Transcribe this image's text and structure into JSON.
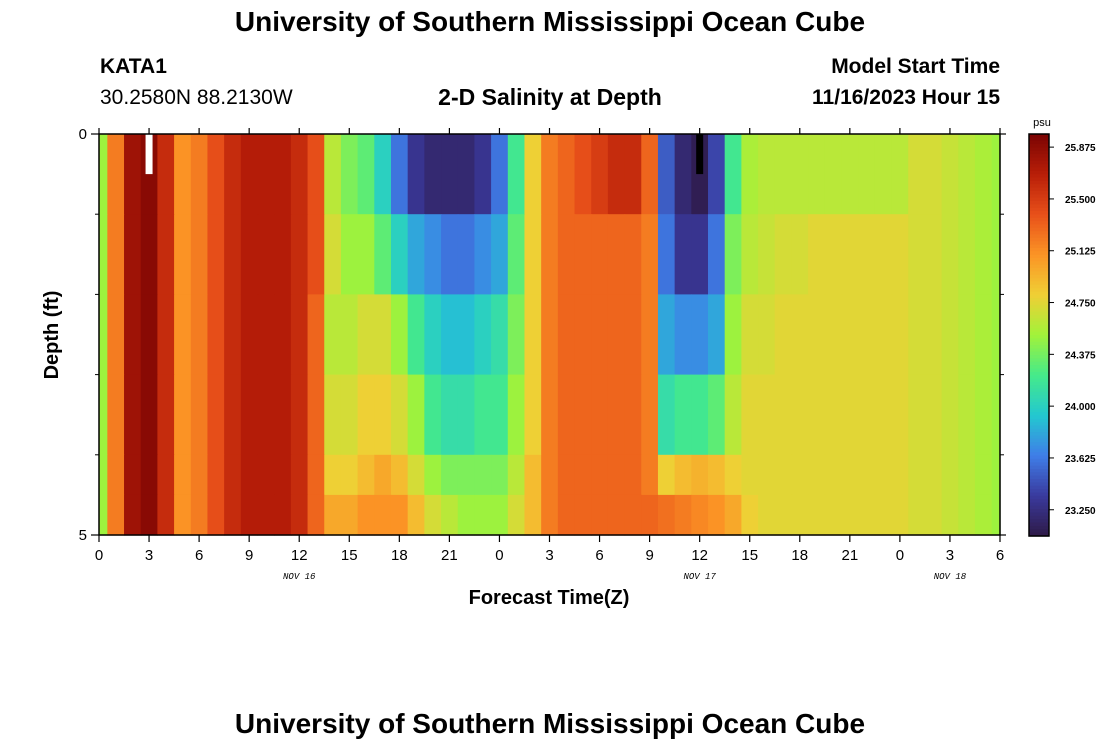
{
  "header": {
    "title": "University of Southern Mississippi Ocean Cube",
    "station_id": "KATA1",
    "coordinates": "30.2580N  88.2130W",
    "plot_title": "2-D Salinity at Depth",
    "start_label": "Model Start Time",
    "start_value": "11/16/2023 Hour 15"
  },
  "footer": {
    "title": "University of Southern Mississippi Ocean Cube"
  },
  "colors": {
    "palette": [
      "#2e1a47",
      "#3a3a9e",
      "#3f7ee8",
      "#23c8d0",
      "#45ea8a",
      "#a2f23a",
      "#f0cf35",
      "#fb9425",
      "#e8501a",
      "#b81e08",
      "#7a0403"
    ],
    "marker_white": "#ffffff",
    "marker_black": "#000000"
  },
  "chart_data": {
    "type": "heatmap",
    "title": "2-D Salinity at Depth",
    "xlabel": "Forecast Time(Z)",
    "ylabel": "Depth (ft)",
    "units": "psu",
    "x_range_hours": [
      0,
      54
    ],
    "y_range": [
      0,
      5
    ],
    "y_tick_labels": [
      "0",
      "5"
    ],
    "y_minor_ticks": [
      1,
      2,
      3,
      4
    ],
    "x_ticks": [
      {
        "hour": 0,
        "label": "0"
      },
      {
        "hour": 3,
        "label": "3"
      },
      {
        "hour": 6,
        "label": "6"
      },
      {
        "hour": 9,
        "label": "9"
      },
      {
        "hour": 12,
        "label": "12"
      },
      {
        "hour": 15,
        "label": "15"
      },
      {
        "hour": 18,
        "label": "18"
      },
      {
        "hour": 21,
        "label": "21"
      },
      {
        "hour": 24,
        "label": "0"
      },
      {
        "hour": 27,
        "label": "3"
      },
      {
        "hour": 30,
        "label": "6"
      },
      {
        "hour": 33,
        "label": "9"
      },
      {
        "hour": 36,
        "label": "12"
      },
      {
        "hour": 39,
        "label": "15"
      },
      {
        "hour": 42,
        "label": "18"
      },
      {
        "hour": 45,
        "label": "21"
      },
      {
        "hour": 48,
        "label": "0"
      },
      {
        "hour": 51,
        "label": "3"
      },
      {
        "hour": 54,
        "label": "6"
      }
    ],
    "date_labels": [
      {
        "hour": 12,
        "label": "NOV 16"
      },
      {
        "hour": 36,
        "label": "NOV 17"
      },
      {
        "hour": 51,
        "label": "NOV 18"
      }
    ],
    "colorbar": {
      "label": "psu",
      "min": 23.06,
      "max": 25.97,
      "ticks": [
        "25.875",
        "25.500",
        "25.125",
        "24.750",
        "24.375",
        "24.000",
        "23.625",
        "23.250"
      ]
    },
    "depth_levels": [
      0,
      1,
      2,
      3,
      4,
      5
    ],
    "time_hours": [
      0,
      1,
      2,
      3,
      4,
      5,
      6,
      7,
      8,
      9,
      10,
      11,
      12,
      13,
      14,
      15,
      16,
      17,
      18,
      19,
      20,
      21,
      22,
      23,
      24,
      25,
      26,
      27,
      28,
      29,
      30,
      31,
      32,
      33,
      34,
      35,
      36,
      37,
      38,
      39,
      40,
      41,
      42,
      43,
      44,
      45,
      46,
      47,
      48,
      49,
      50,
      51,
      52,
      53,
      54
    ],
    "salinity_profiles": {
      "0": [
        24.5,
        25.2,
        25.8,
        25.9,
        25.6,
        25.1,
        25.2,
        25.4,
        25.6,
        25.7,
        25.7,
        25.7,
        25.6,
        25.4,
        24.6,
        24.4,
        24.3,
        24.0,
        23.6,
        23.3,
        23.2,
        23.2,
        23.2,
        23.3,
        23.6,
        24.2,
        24.8,
        25.2,
        25.3,
        25.4,
        25.5,
        25.6,
        25.6,
        25.3,
        23.5,
        23.2,
        23.1,
        23.4,
        24.2,
        24.55,
        24.6,
        24.6,
        24.6,
        24.6,
        24.6,
        24.6,
        24.6,
        24.6,
        24.6,
        24.7,
        24.7,
        24.65,
        24.6,
        24.55,
        24.5
      ],
      "1": [
        24.5,
        25.2,
        25.8,
        25.9,
        25.6,
        25.1,
        25.2,
        25.4,
        25.6,
        25.7,
        25.7,
        25.7,
        25.6,
        25.4,
        24.7,
        24.5,
        24.5,
        24.3,
        24.0,
        23.8,
        23.7,
        23.6,
        23.6,
        23.7,
        23.8,
        24.3,
        24.8,
        25.2,
        25.3,
        25.3,
        25.3,
        25.3,
        25.3,
        25.2,
        23.6,
        23.3,
        23.3,
        23.6,
        24.4,
        24.6,
        24.65,
        24.7,
        24.7,
        24.75,
        24.75,
        24.75,
        24.75,
        24.75,
        24.75,
        24.7,
        24.7,
        24.65,
        24.6,
        24.55,
        24.5
      ],
      "2": [
        24.5,
        25.2,
        25.8,
        25.9,
        25.6,
        25.1,
        25.2,
        25.4,
        25.6,
        25.7,
        25.7,
        25.7,
        25.6,
        25.3,
        24.6,
        24.6,
        24.7,
        24.7,
        24.5,
        24.2,
        24.0,
        23.9,
        23.9,
        24.0,
        24.1,
        24.4,
        24.8,
        25.2,
        25.3,
        25.3,
        25.3,
        25.3,
        25.3,
        25.2,
        23.8,
        23.7,
        23.7,
        23.8,
        24.5,
        24.7,
        24.7,
        24.75,
        24.75,
        24.75,
        24.75,
        24.75,
        24.75,
        24.75,
        24.75,
        24.7,
        24.7,
        24.65,
        24.6,
        24.55,
        24.5
      ],
      "3": [
        24.5,
        25.2,
        25.8,
        25.9,
        25.6,
        25.1,
        25.2,
        25.4,
        25.6,
        25.7,
        25.7,
        25.7,
        25.6,
        25.3,
        24.7,
        24.7,
        24.8,
        24.8,
        24.7,
        24.5,
        24.2,
        24.1,
        24.1,
        24.2,
        24.2,
        24.5,
        24.8,
        25.2,
        25.3,
        25.3,
        25.3,
        25.3,
        25.3,
        25.2,
        24.1,
        24.2,
        24.2,
        24.3,
        24.6,
        24.75,
        24.75,
        24.75,
        24.75,
        24.75,
        24.75,
        24.75,
        24.75,
        24.75,
        24.75,
        24.7,
        24.7,
        24.65,
        24.6,
        24.55,
        24.5
      ],
      "4": [
        24.5,
        25.2,
        25.8,
        25.9,
        25.6,
        25.1,
        25.2,
        25.4,
        25.6,
        25.7,
        25.7,
        25.7,
        25.6,
        25.3,
        24.8,
        24.8,
        24.9,
        25.0,
        24.9,
        24.7,
        24.5,
        24.4,
        24.4,
        24.4,
        24.4,
        24.6,
        24.9,
        25.2,
        25.3,
        25.3,
        25.3,
        25.3,
        25.3,
        25.2,
        24.8,
        24.9,
        24.95,
        24.9,
        24.8,
        24.75,
        24.75,
        24.75,
        24.75,
        24.75,
        24.75,
        24.75,
        24.75,
        24.75,
        24.75,
        24.7,
        24.7,
        24.65,
        24.6,
        24.55,
        24.5
      ],
      "5": [
        24.5,
        25.2,
        25.8,
        25.9,
        25.6,
        25.1,
        25.2,
        25.4,
        25.6,
        25.7,
        25.7,
        25.7,
        25.6,
        25.3,
        25.0,
        25.0,
        25.1,
        25.1,
        25.1,
        24.9,
        24.7,
        24.6,
        24.5,
        24.5,
        24.5,
        24.7,
        24.9,
        25.2,
        25.3,
        25.3,
        25.3,
        25.3,
        25.3,
        25.3,
        25.25,
        25.2,
        25.15,
        25.1,
        25.0,
        24.8,
        24.75,
        24.75,
        24.75,
        24.75,
        24.75,
        24.75,
        24.75,
        24.75,
        24.75,
        24.7,
        24.7,
        24.65,
        24.6,
        24.55,
        24.5
      ]
    },
    "markers": [
      {
        "hour": 3,
        "depth_from": 0,
        "depth_to": 0.5,
        "color": "white"
      },
      {
        "hour": 36,
        "depth_from": 0,
        "depth_to": 0.5,
        "color": "black"
      }
    ]
  }
}
